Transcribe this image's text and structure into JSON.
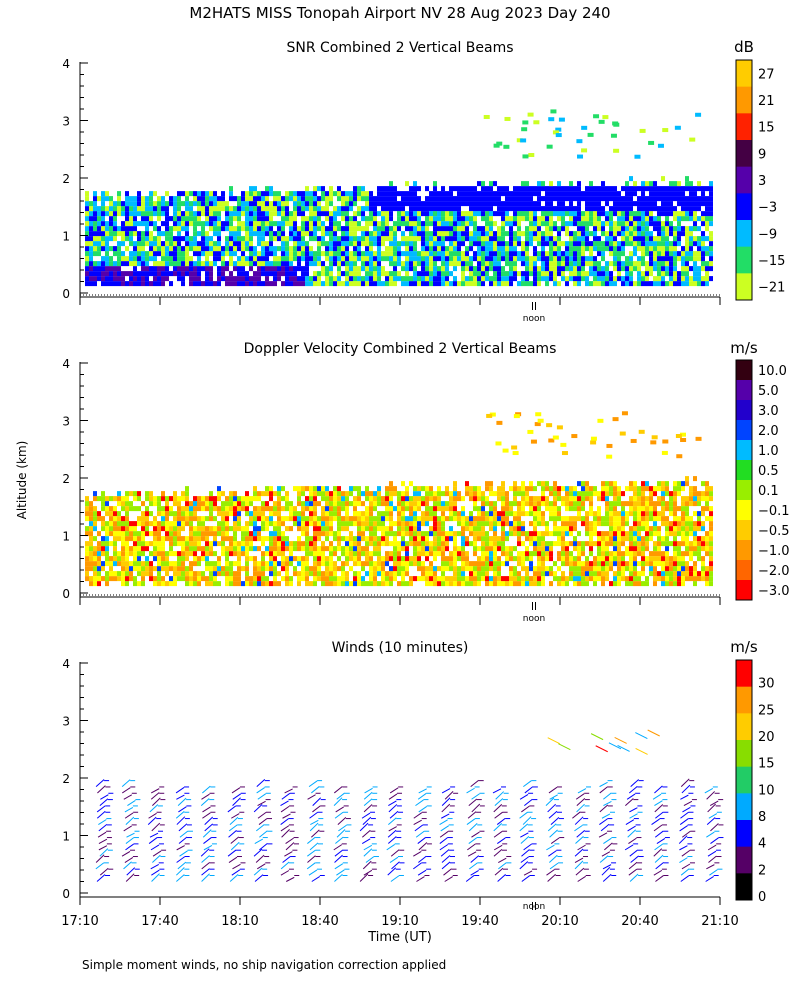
{
  "title": "M2HATS MISS Tonopah Airport NV  28 Aug 2023 Day 240",
  "footnote": "Simple moment winds, no ship navigation correction applied",
  "ylabel": "Altitude (km)",
  "xlabel": "Time (UT)",
  "noon_label": "noon",
  "chart_data": [
    {
      "type": "heatmap",
      "title": "SNR Combined 2 Vertical Beams",
      "colorbar_unit": "dB",
      "colorbar_labels": [
        "27",
        "21",
        "15",
        "9",
        "3",
        "−3",
        "−9",
        "−15",
        "−21"
      ],
      "colorbar_colors": [
        "#ffcc00",
        "#ff9900",
        "#ff2200",
        "#440044",
        "#5500aa",
        "#0000ff",
        "#00bbff",
        "#22dd66",
        "#ccff22"
      ],
      "y_ticks": [
        "0",
        "1",
        "2",
        "3",
        "4"
      ],
      "ylim": [
        0,
        4
      ],
      "x_ticks": [
        "17:10",
        "17:40",
        "18:10",
        "18:40",
        "19:10",
        "19:40",
        "20:10",
        "20:40",
        "21:10"
      ]
    },
    {
      "type": "heatmap",
      "title": "Doppler Velocity Combined 2 Vertical Beams",
      "colorbar_unit": "m/s",
      "colorbar_labels": [
        "10.0",
        "5.0",
        "3.0",
        "2.0",
        "1.0",
        "0.5",
        "0.1",
        "−0.1",
        "−0.5",
        "−1.0",
        "−2.0",
        "−3.0"
      ],
      "colorbar_colors": [
        "#330011",
        "#5500aa",
        "#2200cc",
        "#0044ff",
        "#00bbff",
        "#22dd22",
        "#99ee00",
        "#ffff00",
        "#ffcc00",
        "#ff9900",
        "#ff6600",
        "#ff0000"
      ],
      "y_ticks": [
        "0",
        "1",
        "2",
        "3",
        "4"
      ],
      "ylim": [
        0,
        4
      ],
      "x_ticks": [
        "17:10",
        "17:40",
        "18:10",
        "18:40",
        "19:10",
        "19:40",
        "20:10",
        "20:40",
        "21:10"
      ]
    },
    {
      "type": "scatter",
      "title": "Winds (10 minutes)",
      "colorbar_unit": "m/s",
      "colorbar_labels": [
        "30",
        "25",
        "20",
        "15",
        "10",
        "8",
        "4",
        "2",
        "0"
      ],
      "colorbar_colors": [
        "#ff0000",
        "#ff9900",
        "#ffcc00",
        "#88dd00",
        "#22cc66",
        "#00aaff",
        "#0000ff",
        "#550066",
        "#000000"
      ],
      "y_ticks": [
        "0",
        "1",
        "2",
        "3",
        "4"
      ],
      "ylim": [
        0,
        4
      ],
      "x_ticks": [
        "17:10",
        "17:40",
        "18:10",
        "18:40",
        "19:10",
        "19:40",
        "20:10",
        "20:40",
        "21:10"
      ]
    }
  ]
}
